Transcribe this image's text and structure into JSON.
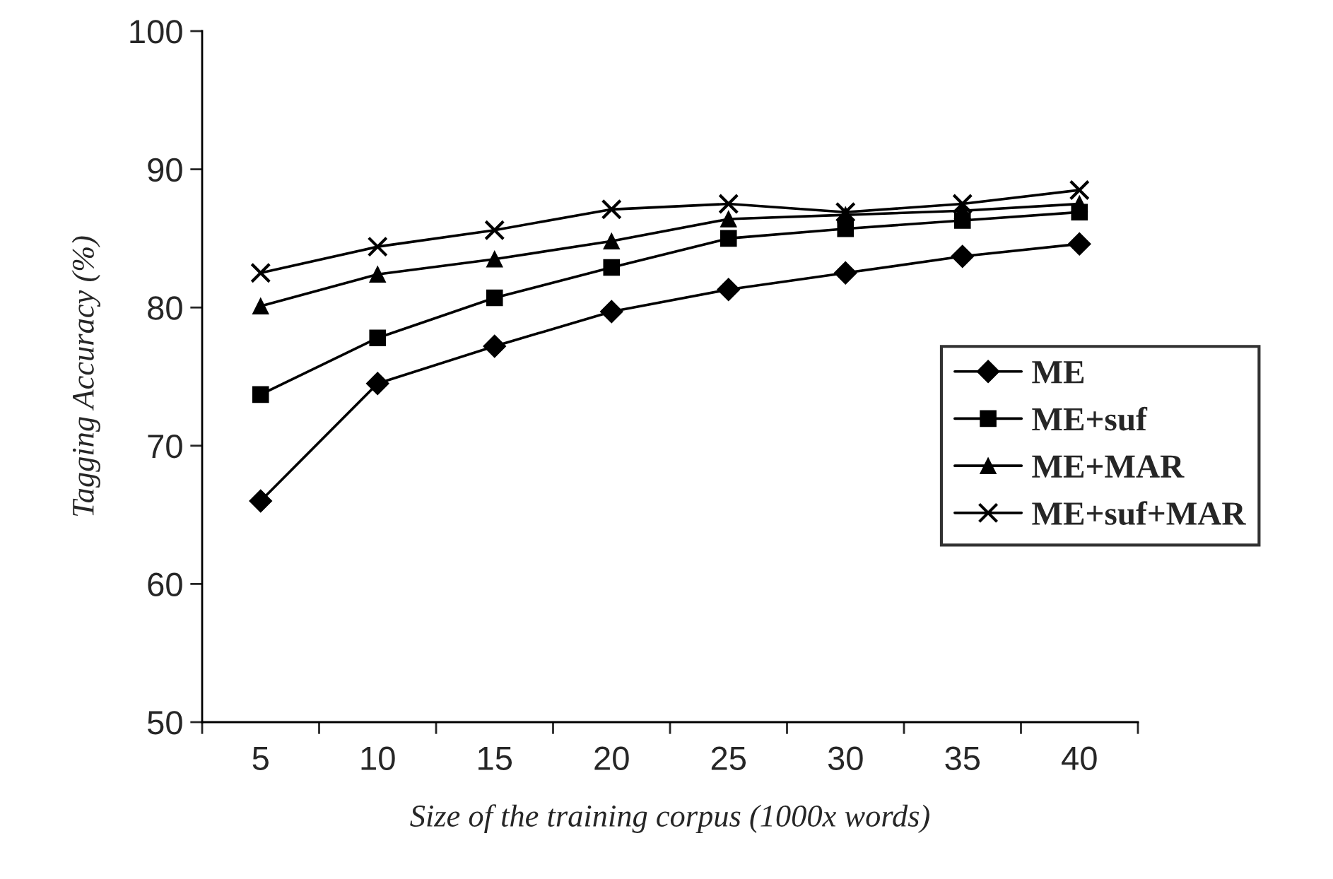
{
  "chart_data": {
    "type": "line",
    "xlabel": "Size of the training corpus (1000x words)",
    "ylabel": "Tagging Accuracy (%)",
    "categories": [
      "5",
      "10",
      "15",
      "20",
      "25",
      "30",
      "35",
      "40"
    ],
    "series": [
      {
        "name": "ME",
        "color": "#000000",
        "marker": "diamond",
        "values": [
          66.0,
          74.5,
          77.2,
          79.7,
          81.3,
          82.5,
          83.7,
          84.6
        ]
      },
      {
        "name": "ME+suf",
        "color": "#000000",
        "marker": "square",
        "values": [
          73.7,
          77.8,
          80.7,
          82.9,
          85.0,
          85.7,
          86.3,
          86.9
        ]
      },
      {
        "name": "ME+MAR",
        "color": "#000000",
        "marker": "triangle",
        "values": [
          80.1,
          82.4,
          83.5,
          84.8,
          86.4,
          86.7,
          87.0,
          87.5
        ]
      },
      {
        "name": "ME+suf+MAR",
        "color": "#000000",
        "marker": "cross",
        "values": [
          82.5,
          84.4,
          85.6,
          87.1,
          87.5,
          86.9,
          87.5,
          88.5
        ]
      }
    ],
    "ylim": [
      50,
      100
    ],
    "yticks": [
      50,
      60,
      70,
      80,
      90,
      100
    ],
    "grid": false,
    "legend": "right",
    "line_style": "solid"
  }
}
